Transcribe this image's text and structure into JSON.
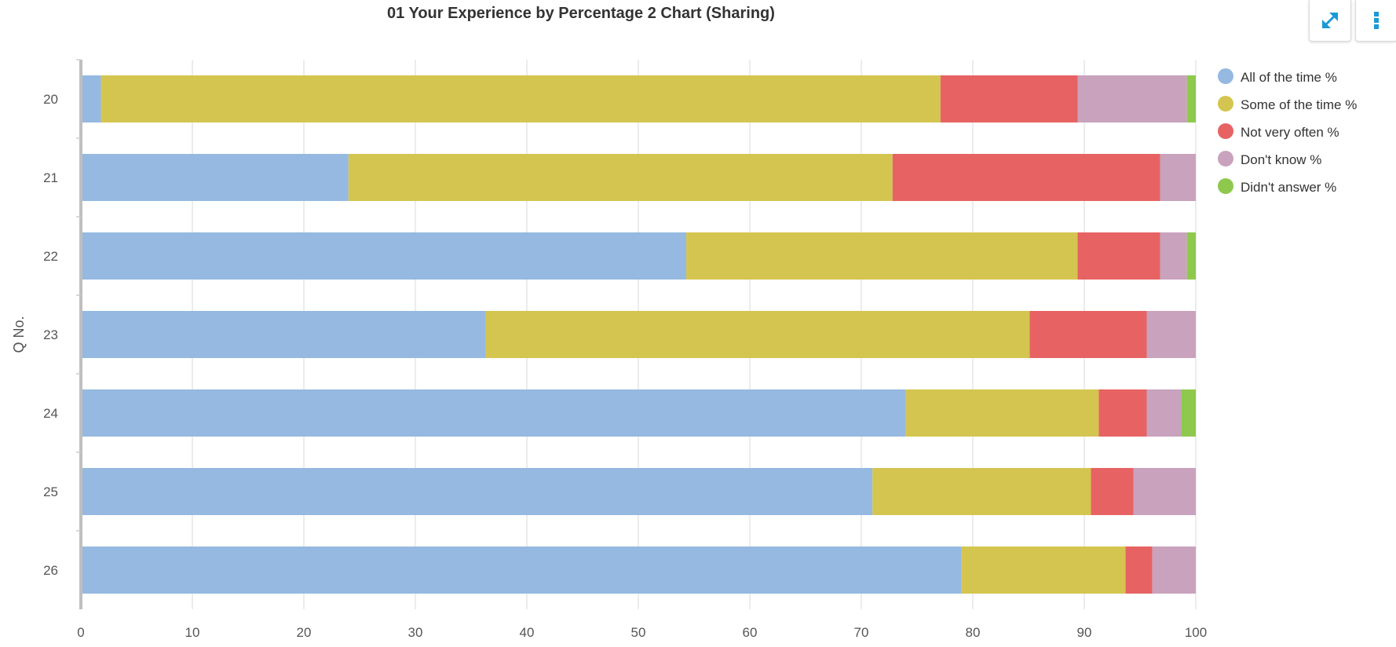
{
  "header": {
    "title": "01 Your Experience by Percentage 2 Chart (Sharing)"
  },
  "toolbar": {
    "expand_icon": "expand-arrows-icon",
    "menu_icon": "vertical-dots-icon",
    "accent_color": "#1a9ad6"
  },
  "chart_data": {
    "type": "bar",
    "orientation": "horizontal",
    "stacked": true,
    "ylabel": "Q No.",
    "xlabel": "",
    "xlim": [
      0,
      100
    ],
    "xticks": [
      0,
      10,
      20,
      30,
      40,
      50,
      60,
      70,
      80,
      90,
      100
    ],
    "grid": true,
    "legend_position": "top-right",
    "categories": [
      "20",
      "21",
      "22",
      "23",
      "24",
      "25",
      "26"
    ],
    "series": [
      {
        "name": "All of the time %",
        "color": "#95b9e1",
        "values": [
          1.8,
          24.0,
          54.3,
          36.3,
          74.0,
          71.0,
          79.0
        ]
      },
      {
        "name": "Some of the time %",
        "color": "#d4c550",
        "values": [
          75.3,
          48.8,
          35.1,
          48.8,
          17.3,
          19.6,
          14.7
        ]
      },
      {
        "name": "Not very often %",
        "color": "#e76363",
        "values": [
          12.3,
          24.0,
          7.4,
          10.5,
          4.3,
          3.8,
          2.4
        ]
      },
      {
        "name": "Don't know %",
        "color": "#c9a2bd",
        "values": [
          9.8,
          3.2,
          2.4,
          4.4,
          3.1,
          5.6,
          3.9
        ]
      },
      {
        "name": "Didn't answer %",
        "color": "#8ec94e",
        "values": [
          0.8,
          0.0,
          0.8,
          0.0,
          1.3,
          0.0,
          0.0
        ]
      }
    ]
  }
}
